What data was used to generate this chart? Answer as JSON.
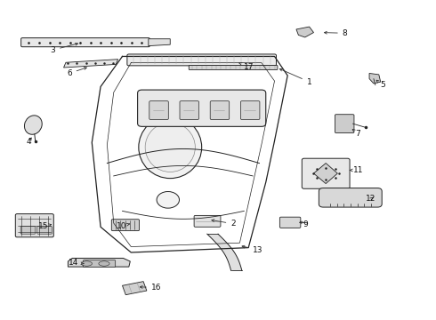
{
  "bg_color": "#ffffff",
  "line_color": "#222222",
  "label_color": "#111111",
  "labels_data": {
    "1": [
      0.71,
      0.745,
      0.635,
      0.79
    ],
    "2": [
      0.535,
      0.3,
      0.478,
      0.313
    ],
    "3": [
      0.12,
      0.845,
      0.185,
      0.868
    ],
    "4": [
      0.065,
      0.558,
      0.075,
      0.578
    ],
    "5": [
      0.878,
      0.735,
      0.863,
      0.752
    ],
    "6": [
      0.158,
      0.772,
      0.205,
      0.793
    ],
    "7": [
      0.822,
      0.582,
      0.808,
      0.598
    ],
    "8": [
      0.792,
      0.898,
      0.737,
      0.9
    ],
    "9": [
      0.702,
      0.298,
      0.687,
      0.308
    ],
    "10": [
      0.278,
      0.293,
      0.298,
      0.3
    ],
    "11": [
      0.822,
      0.468,
      0.802,
      0.468
    ],
    "12": [
      0.852,
      0.378,
      0.862,
      0.388
    ],
    "13": [
      0.592,
      0.218,
      0.548,
      0.232
    ],
    "14": [
      0.168,
      0.178,
      0.198,
      0.174
    ],
    "15": [
      0.098,
      0.293,
      0.118,
      0.298
    ],
    "16": [
      0.358,
      0.1,
      0.313,
      0.102
    ],
    "17": [
      0.572,
      0.792,
      0.542,
      0.808
    ]
  }
}
